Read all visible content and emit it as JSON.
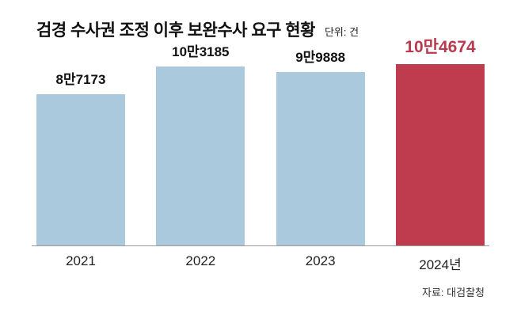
{
  "header": {
    "title": "검경 수사권 조정 이후 보완수사 요구 현황",
    "unit": "단위: 건"
  },
  "source": "자료: 대검찰청",
  "colors": {
    "bar_default": "#aac9dd",
    "bar_highlight": "#bf3b4e",
    "label_default": "#111111",
    "label_highlight": "#b93a4e"
  },
  "chart_data": {
    "type": "bar",
    "title": "검경 수사권 조정 이후 보완수사 요구 현황",
    "unit_note": "단위: 건",
    "categories": [
      "2021",
      "2022",
      "2023",
      "2024년"
    ],
    "values": [
      87173,
      103185,
      99888,
      104674
    ],
    "value_labels": [
      "8만7173",
      "10만3185",
      "9만9888",
      "10만4674"
    ],
    "highlight_index": 3,
    "xlabel": "",
    "ylabel": "",
    "ylim": [
      0,
      110000
    ],
    "grid": false,
    "legend": false,
    "source": "자료: 대검찰청"
  }
}
